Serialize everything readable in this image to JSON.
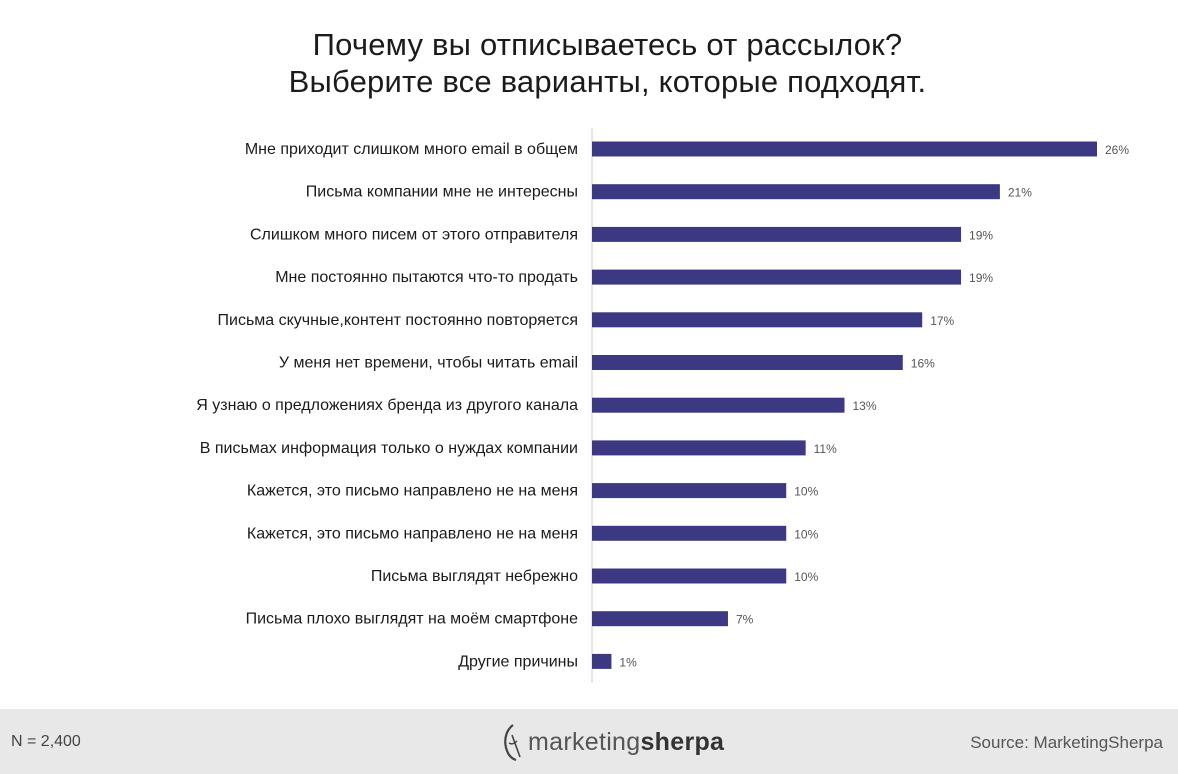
{
  "title_lines": [
    "Почему вы отписываетесь от рассылок?",
    "Выберите все варианты, которые подходят."
  ],
  "colors": {
    "bar": "#3c3882",
    "axis": "#cccccc",
    "label": "#1b1b1b",
    "value": "#555555"
  },
  "chart_data": {
    "type": "bar",
    "orientation": "horizontal",
    "title": "Почему вы отписываетесь от рассылок? Выберите все варианты, которые подходят.",
    "categories": [
      "Мне приходит слишком много email в общем",
      "Письма компании мне не интересны",
      "Слишком много писем от этого отправителя",
      "Мне постоянно пытаются что-то продать",
      "Письма скучные,контент постоянно повторяется",
      "У меня нет времени, чтобы читать email",
      "Я узнаю о предложениях бренда из другого канала",
      "В письмах информация только о нуждах компании",
      "Кажется, это письмо направлено не на меня",
      "Кажется, это письмо направлено не на меня",
      "Письма выглядят небрежно",
      "Письма плохо выглядят на моём смартфоне",
      "Другие причины"
    ],
    "values": [
      26,
      21,
      19,
      19,
      17,
      16,
      13,
      11,
      10,
      10,
      10,
      7,
      1
    ],
    "value_labels": [
      "26%",
      "21%",
      "19%",
      "19%",
      "17%",
      "16%",
      "13%",
      "11%",
      "10%",
      "10%",
      "10%",
      "7%",
      "1%"
    ],
    "xlim": [
      0,
      26
    ],
    "grid": false,
    "legend": "none"
  },
  "footer": {
    "n_label": "N = 2,400",
    "logo_part1": "marketing",
    "logo_part2": "sherpa",
    "source": "Source: MarketingSherpa"
  },
  "icons": {
    "logo": "sherpa-logo-icon"
  }
}
